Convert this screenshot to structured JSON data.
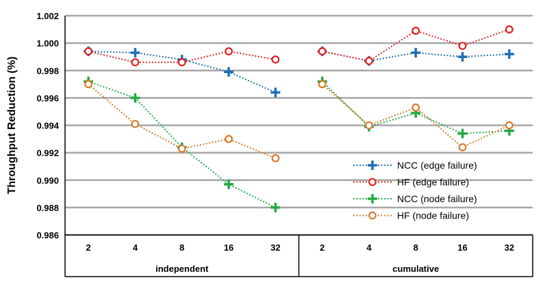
{
  "chart_data": {
    "type": "line",
    "ylabel": "Throughput Reduction (%)",
    "ylim": [
      0.986,
      1.002
    ],
    "yticks": [
      "0.986",
      "0.988",
      "0.990",
      "0.992",
      "0.994",
      "0.996",
      "0.998",
      "1.000",
      "1.002"
    ],
    "grid": true,
    "groups": [
      {
        "label": "independent",
        "categories": [
          "2",
          "4",
          "8",
          "16",
          "32"
        ]
      },
      {
        "label": "cumulative",
        "categories": [
          "2",
          "4",
          "8",
          "16",
          "32"
        ]
      }
    ],
    "legend_position": "right-bottom",
    "series": [
      {
        "name": "NCC (edge failure)",
        "color": "#1f6fb5",
        "marker": "plus",
        "values": [
          [
            0.9994,
            0.9993,
            0.9988,
            0.9979,
            0.9964
          ],
          [
            0.9994,
            0.9987,
            0.9993,
            0.999,
            0.9992
          ]
        ]
      },
      {
        "name": "HF (edge failure)",
        "color": "#e02020",
        "marker": "circle",
        "values": [
          [
            0.9994,
            0.9986,
            0.9986,
            0.9994,
            0.9988
          ],
          [
            0.9994,
            0.9987,
            1.0009,
            0.9998,
            1.001
          ]
        ]
      },
      {
        "name": "NCC (node failure)",
        "color": "#22aa44",
        "marker": "plus",
        "values": [
          [
            0.9972,
            0.996,
            0.9924,
            0.9897,
            0.988
          ],
          [
            0.9972,
            0.9939,
            0.9949,
            0.9934,
            0.9936
          ]
        ]
      },
      {
        "name": "HF (node failure)",
        "color": "#d87a2a",
        "marker": "circle",
        "values": [
          [
            0.997,
            0.9941,
            0.9923,
            0.993,
            0.9916
          ],
          [
            0.997,
            0.994,
            0.9953,
            0.9924,
            0.994
          ]
        ]
      }
    ]
  }
}
